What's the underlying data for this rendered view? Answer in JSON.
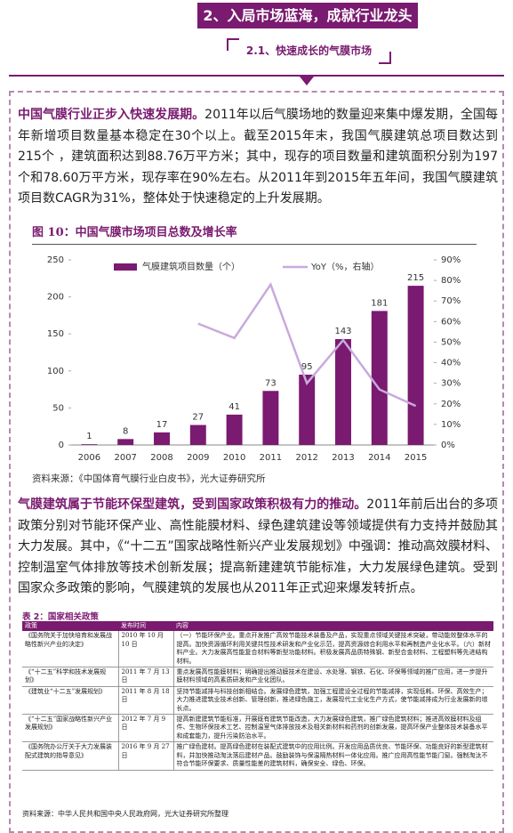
{
  "header": {
    "section_title": "2、入局市场蓝海，成就行业龙头",
    "subsection_title": "2.1、快速成长的气膜市场"
  },
  "paragraphs": [
    {
      "lead": "中国气膜行业正步入快速发展期。",
      "body": "2011年以后气膜场地的数量迎来集中爆发期，全国每年新增项目数量基本稳定在30个以上。截至2015年末，我国气膜建筑总项目数达到215个 ，建筑面积达到88.76万平方米；其中，现存的项目数量和建筑面积分别为197个和78.60万平方米，现存率在90%左右。从2011年到2015年五年间，我国气膜建筑项目数CAGR为31%，整体处于快速稳定的上升发展期。"
    },
    {
      "lead": "气膜建筑属于节能环保型建筑，受到国家政策积极有力的推动。",
      "body": "2011年前后出台的多项政策分别对节能环保产业、高性能膜材料、绿色建筑建设等领域提供有力支持并鼓励其大力发展。其中，《“十二五”国家战略性新兴产业发展规划》中强调：推动高效膜材料、控制温室气体排放等技术创新发展；提高新建建筑节能标准，大力发展绿色建筑。受到国家众多政策的影响，气膜建筑的发展也从2011年正式迎来爆发转折点。"
    }
  ],
  "figure": {
    "caption": "图 10：中国气膜市场项目总数及增长率",
    "source": "资料来源：《中国体育气膜行业白皮书》，光大证券研究所"
  },
  "chart_data": {
    "type": "bar",
    "categories": [
      "2006",
      "2007",
      "2008",
      "2009",
      "2010",
      "2011",
      "2012",
      "2013",
      "2014",
      "2015"
    ],
    "series": [
      {
        "name": "气膜建筑项目数量（个）",
        "type": "bar",
        "color": "#7a1a70",
        "values": [
          1,
          8,
          17,
          27,
          41,
          73,
          95,
          143,
          181,
          215
        ]
      },
      {
        "name": "YoY（%，右轴）",
        "type": "line",
        "axis": "y2",
        "color": "#c9a9dd",
        "values": [
          null,
          null,
          null,
          59,
          52,
          78,
          30,
          51,
          27,
          19
        ]
      }
    ],
    "ylim": [
      0,
      250
    ],
    "yticks": [
      0,
      50,
      100,
      150,
      200,
      250
    ],
    "y2lim": [
      0,
      90
    ],
    "y2ticks": [
      {
        "value": 0,
        "label": "0%"
      },
      {
        "value": 10,
        "label": "10%"
      },
      {
        "value": 20,
        "label": "20%"
      },
      {
        "value": 30,
        "label": "30%"
      },
      {
        "value": 40,
        "label": "40%"
      },
      {
        "value": 50,
        "label": "50%"
      },
      {
        "value": 60,
        "label": "60%"
      },
      {
        "value": 70,
        "label": "70%"
      },
      {
        "value": 80,
        "label": "80%"
      },
      {
        "value": 90,
        "label": "90%"
      }
    ],
    "grid": false,
    "legend": "upper center"
  },
  "table": {
    "caption": "表 2：国家相关政策",
    "columns": [
      "政策",
      "发布时间",
      "内容"
    ],
    "rows": [
      [
        "《国务院关于加快培育和发展战略性新兴产业的决定》",
        "2010 年 10 月 10 日",
        "（一）节能环保产业。重点开发推广高效节能技术装备及产品，实现重点领域关键技术突破，带动能效整体水平的提高。加快资源循环利用关键共性技术研发和产业化示范，提高资源综合利用水平和再制造产业化水平。（六）新材料产业。大力发展高性能复合材料等新型功能材料。积极发展高品质特殊钢、新型合金材料、工程塑料等先进结构材料。"
      ],
      [
        "《“十二五”科学和技术发展规划》",
        "2011 年 7 月 13 日",
        "重点发展高性能膜材料；明确提出推动膜技术在建设、水处理、钢铁、石化、环保等领域的推广应用，进一步提升膜材料领域的高素质研发和产业化团队。"
      ],
      [
        "《建筑业“十二五”发展规划》",
        "2011 年 8 月 18 日",
        "坚持节能减排与科技创新相结合。发展绿色建筑，加强工程建设全过程的节能减排，实现低耗、环保、高效生产；大力推进建筑业技术创新、管理创新，推进绿色施工，发展现代工业化生产方式，使节能减排成为行业发展新的增长点。"
      ],
      [
        "《“十二五”国家战略性新兴产业发展规划》",
        "2012 年 7 月 9 日",
        "提高新建建筑节能标准，开展既有建筑节能改造，大力发展绿色建筑，推广绿色建筑材料；推进高效膜材料及组件、生物环保技术工艺、控制温室气体排放技术及相关新材料和药剂的创新发展，提高环保产业整体技术装备水平和成套能力，提升污染防治水平。"
      ],
      [
        "《国务院办公厅关于大力发展装配式建筑的指导意见》",
        "2016 年 9 月 27 日",
        "推广绿色建材。提高绿色建材在装配式建筑中的应用比例。开发应用品质优良、节能环保、功能良好的新型建筑材料，并加快推动淘汰落后建材产品。鼓励装饰与保温隔热材料一体化应用。推广应用高性能节能门窗。强制淘汰不符合节能环保要求、质量性能差的建筑材料，确保安全、绿色、环保。"
      ]
    ],
    "source": "资料来源：中华人民共和国中央人民政府网，光大证券研究所整理"
  }
}
